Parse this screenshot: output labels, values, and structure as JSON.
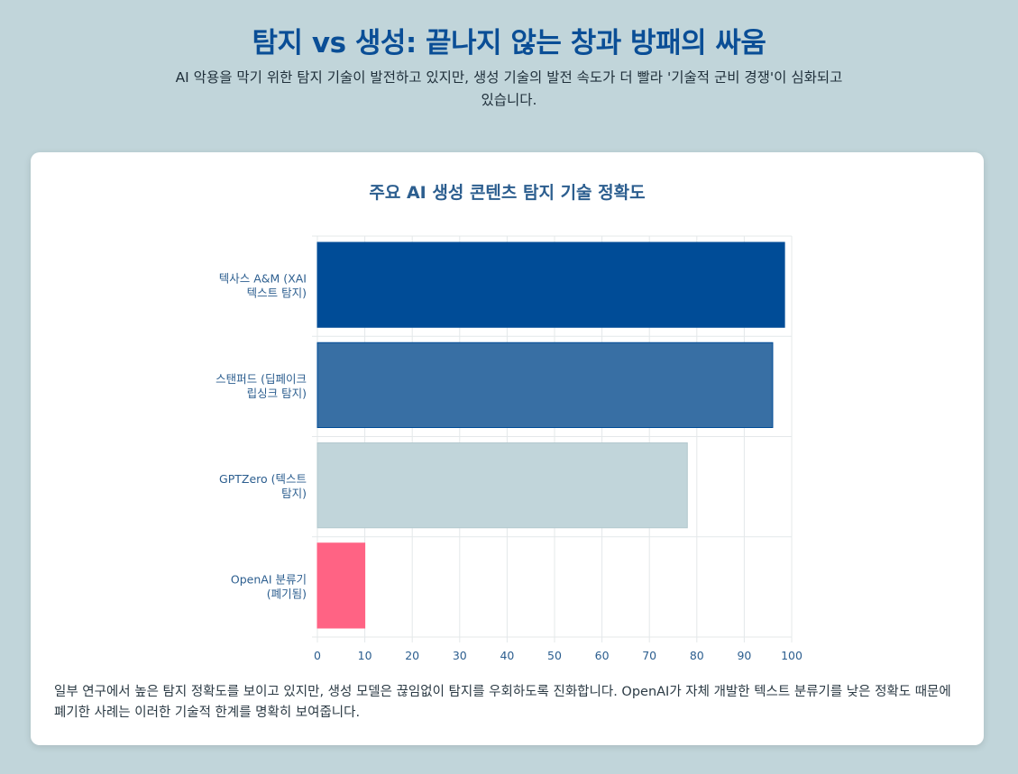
{
  "header": {
    "title": "탐지 vs 생성: 끝나지 않는 창과 방패의 싸움",
    "subtitle": "AI 악용을 막기 위한 탐지 기술이 발전하고 있지만, 생성 기술의 발전 속도가 더 빨라 '기술적 군비 경쟁'이 심화되고 있습니다."
  },
  "chart_data": {
    "type": "bar",
    "orientation": "horizontal",
    "title": "주요 AI 생성 콘텐츠 탐지 기술 정확도",
    "categories": [
      [
        "텍사스 A&M (XAI",
        "텍스트 탐지)"
      ],
      [
        "스탠퍼드 (딥페이크",
        "립싱크 탐지)"
      ],
      [
        "GPTZero (텍스트",
        "탐지)"
      ],
      [
        "OpenAI 분류기",
        "(폐기됨)"
      ]
    ],
    "values": [
      98.5,
      96,
      78,
      10
    ],
    "colors": [
      "#004c97",
      "#386fa4",
      "#c1d5da",
      "#ff6384"
    ],
    "xlim": [
      0,
      100
    ],
    "xticks": [
      0,
      10,
      20,
      30,
      40,
      50,
      60,
      70,
      80,
      90,
      100
    ],
    "grid": true,
    "legend": "none"
  },
  "note": "일부 연구에서 높은 탐지 정확도를 보이고 있지만, 생성 모델은 끊임없이 탐지를 우회하도록 진화합니다. OpenAI가 자체 개발한 텍스트 분류기를 낮은 정확도 때문에 폐기한 사례는 이러한 기술적 한계를 명확히 보여줍니다."
}
